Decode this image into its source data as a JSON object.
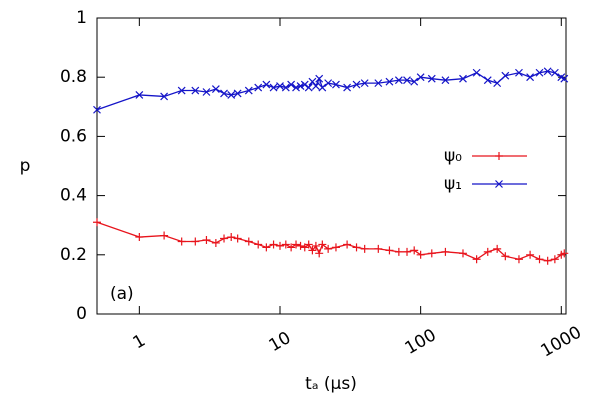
{
  "chart_data": {
    "type": "line",
    "xlabel": "tₐ (µs)",
    "ylabel": "p",
    "annotation": "(a)",
    "xscale": "log",
    "xlim": [
      0.5,
      1080
    ],
    "xticks": [
      1,
      10,
      100,
      1000
    ],
    "ylim": [
      0,
      1
    ],
    "yticks": [
      0,
      0.2,
      0.4,
      0.6,
      0.8,
      1
    ],
    "legend": "right",
    "x": [
      0.5,
      1,
      1.5,
      2,
      2.5,
      3,
      3.5,
      4,
      4.5,
      5,
      6,
      7,
      8,
      9,
      10,
      11,
      12,
      13,
      14,
      15,
      16,
      17,
      18,
      19,
      20,
      22,
      25,
      30,
      35,
      40,
      50,
      60,
      70,
      80,
      90,
      100,
      120,
      150,
      200,
      250,
      300,
      350,
      400,
      500,
      600,
      700,
      800,
      900,
      1000,
      1050
    ],
    "series": [
      {
        "name": "ψ₀",
        "color": "#e8141c",
        "marker": "plus",
        "values": [
          0.31,
          0.26,
          0.265,
          0.245,
          0.245,
          0.25,
          0.24,
          0.255,
          0.26,
          0.255,
          0.245,
          0.235,
          0.225,
          0.235,
          0.23,
          0.235,
          0.225,
          0.235,
          0.23,
          0.225,
          0.235,
          0.215,
          0.23,
          0.205,
          0.235,
          0.22,
          0.225,
          0.235,
          0.225,
          0.22,
          0.22,
          0.215,
          0.21,
          0.21,
          0.215,
          0.2,
          0.205,
          0.21,
          0.205,
          0.185,
          0.21,
          0.22,
          0.195,
          0.185,
          0.2,
          0.185,
          0.18,
          0.185,
          0.2,
          0.205
        ]
      },
      {
        "name": "ψ₁",
        "color": "#1414c8",
        "marker": "cross",
        "values": [
          0.69,
          0.74,
          0.735,
          0.755,
          0.755,
          0.75,
          0.76,
          0.745,
          0.74,
          0.745,
          0.755,
          0.765,
          0.775,
          0.765,
          0.77,
          0.765,
          0.775,
          0.765,
          0.77,
          0.775,
          0.765,
          0.785,
          0.77,
          0.795,
          0.765,
          0.78,
          0.775,
          0.765,
          0.775,
          0.78,
          0.78,
          0.785,
          0.79,
          0.79,
          0.785,
          0.8,
          0.795,
          0.79,
          0.795,
          0.815,
          0.79,
          0.78,
          0.805,
          0.815,
          0.8,
          0.815,
          0.82,
          0.815,
          0.8,
          0.795
        ]
      }
    ]
  }
}
